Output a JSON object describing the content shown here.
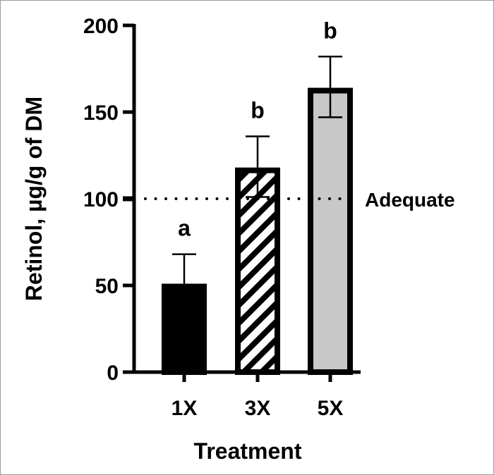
{
  "chart_data": {
    "type": "bar",
    "title": "",
    "xlabel": "Treatment",
    "ylabel": "Retinol, µg/g of DM",
    "categories": [
      "1X",
      "3X",
      "5X"
    ],
    "values": [
      51,
      118,
      164
    ],
    "error_upper": [
      68,
      136,
      182
    ],
    "error_lower": [
      51,
      101,
      147
    ],
    "significance_letters": [
      "a",
      "b",
      "b"
    ],
    "bar_fills": [
      "solid-black",
      "diagonal-hatch",
      "light-gray"
    ],
    "colors": {
      "black": "#000000",
      "gray": "#c8c8c8"
    },
    "ylim": [
      0,
      200
    ],
    "yticks": [
      0,
      50,
      100,
      150,
      200
    ],
    "reference_line": {
      "value": 100,
      "label": "Adequate",
      "style": "dotted"
    },
    "grid": false,
    "legend": "none"
  }
}
